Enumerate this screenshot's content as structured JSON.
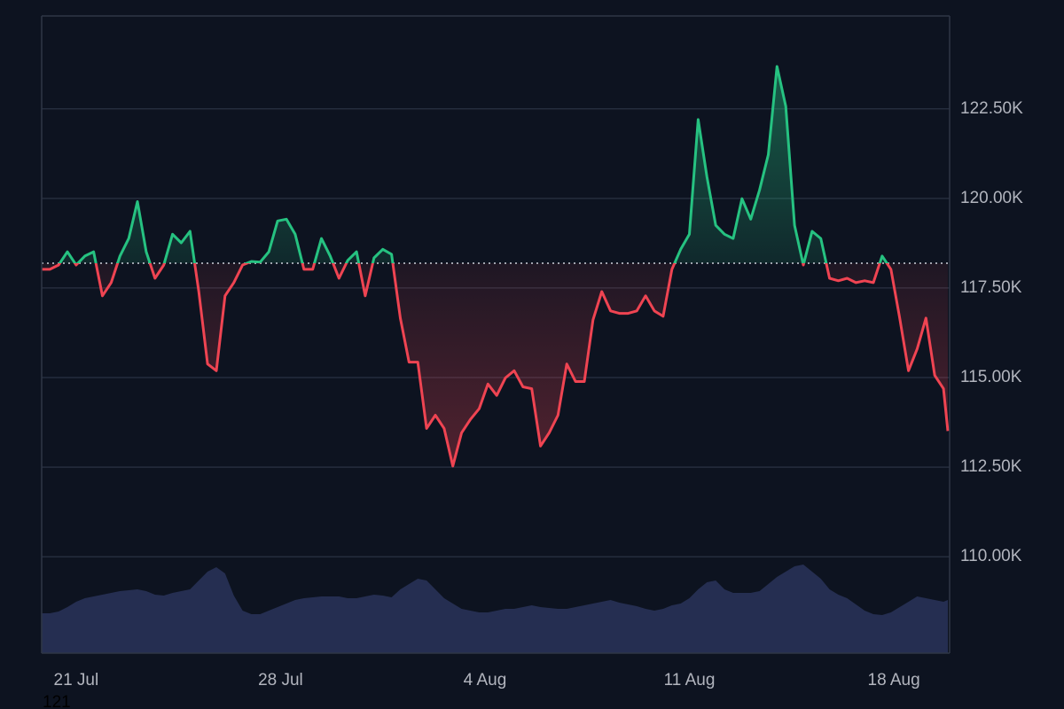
{
  "chart_data": {
    "type": "line",
    "annotation": "121",
    "x": [
      19.8,
      20.1,
      20.4,
      20.7,
      21,
      21.3,
      21.6,
      21.9,
      22.2,
      22.5,
      22.8,
      23.1,
      23.4,
      23.7,
      24,
      24.3,
      24.6,
      24.9,
      25.2,
      25.5,
      25.8,
      26.1,
      26.4,
      26.7,
      27,
      27.3,
      27.6,
      27.9,
      28.2,
      28.5,
      28.8,
      29.1,
      29.4,
      29.7,
      30,
      30.3,
      30.6,
      30.9,
      31.2,
      31.5,
      31.8,
      32.1,
      32.4,
      32.7,
      33,
      33.3,
      33.6,
      33.9,
      34.2,
      34.5,
      34.8,
      35.1,
      35.4,
      35.7,
      36,
      36.3,
      36.6,
      36.9,
      37.2,
      37.5,
      37.8,
      38.1,
      38.4,
      38.7,
      39,
      39.3,
      39.6,
      39.9,
      40.2,
      40.5,
      40.8,
      41.1,
      41.4,
      41.7,
      42,
      42.3,
      42.6,
      42.9,
      43.2,
      43.5,
      43.8,
      44.1,
      44.4,
      44.7,
      45,
      45.3,
      45.6,
      45.9,
      46.2,
      46.5,
      46.8,
      47.1,
      47.4,
      47.7,
      48,
      48.3,
      48.6,
      48.9,
      49.2,
      49.5,
      49.8,
      50.1,
      50.4,
      50.7,
      50.85
    ],
    "values": [
      118020,
      118020,
      118140,
      118510,
      118140,
      118390,
      118510,
      117280,
      117650,
      118390,
      118880,
      119910,
      118510,
      117770,
      118140,
      119000,
      118760,
      119080,
      117400,
      115380,
      115190,
      117280,
      117650,
      118140,
      118240,
      118220,
      118510,
      119370,
      119420,
      119000,
      118020,
      118020,
      118880,
      118390,
      117770,
      118270,
      118510,
      117280,
      118340,
      118580,
      118440,
      116660,
      115430,
      115430,
      113580,
      113950,
      113580,
      112530,
      113460,
      113830,
      114130,
      114820,
      114500,
      114990,
      115190,
      114740,
      114690,
      113090,
      113460,
      113950,
      115380,
      114890,
      114890,
      116610,
      117400,
      116860,
      116790,
      116790,
      116860,
      117280,
      116860,
      116710,
      118020,
      118580,
      119000,
      122200,
      120600,
      119250,
      119000,
      118880,
      119990,
      119420,
      120230,
      121220,
      123680,
      122570,
      119250,
      118140,
      119080,
      118880,
      117770,
      117700,
      117770,
      117650,
      117700,
      117650,
      118390,
      118020,
      116660,
      115190,
      115800,
      116660,
      115060,
      114690,
      113510
    ],
    "baseline": 118190,
    "color_up": "#26c281",
    "color_down": "#ef4452",
    "volume": {
      "color": "#283256",
      "ylim": [
        0,
        100
      ],
      "values": [
        45,
        45,
        47,
        52,
        58,
        62,
        64,
        66,
        68,
        70,
        71,
        72,
        70,
        66,
        65,
        68,
        70,
        72,
        82,
        92,
        97,
        90,
        65,
        48,
        44,
        44,
        48,
        52,
        56,
        60,
        62,
        63,
        64,
        64,
        64,
        62,
        62,
        64,
        66,
        65,
        63,
        72,
        78,
        84,
        82,
        72,
        62,
        56,
        50,
        48,
        46,
        46,
        48,
        50,
        50,
        52,
        54,
        52,
        51,
        50,
        50,
        52,
        54,
        56,
        58,
        60,
        57,
        55,
        53,
        50,
        48,
        50,
        54,
        56,
        62,
        72,
        80,
        82,
        72,
        68,
        68,
        68,
        70,
        78,
        86,
        92,
        98,
        100,
        92,
        84,
        72,
        66,
        62,
        55,
        48,
        44,
        43,
        46,
        52,
        58,
        64,
        62,
        60,
        58,
        60
      ]
    },
    "xlim": [
      19.82,
      50.91
    ],
    "ylim": [
      107310,
      125090
    ],
    "xticks": [
      {
        "value": 21,
        "label": "21 Jul"
      },
      {
        "value": 28,
        "label": "28 Jul"
      },
      {
        "value": 35,
        "label": "4 Aug"
      },
      {
        "value": 42,
        "label": "11 Aug"
      },
      {
        "value": 49,
        "label": "18 Aug"
      }
    ],
    "yticks": [
      {
        "value": 110000,
        "label": "110.00K"
      },
      {
        "value": 112500,
        "label": "112.50K"
      },
      {
        "value": 115000,
        "label": "115.00K"
      },
      {
        "value": 117500,
        "label": "117.50K"
      },
      {
        "value": 120000,
        "label": "120.00K"
      },
      {
        "value": 122500,
        "label": "122.50K"
      }
    ],
    "grid": true
  }
}
